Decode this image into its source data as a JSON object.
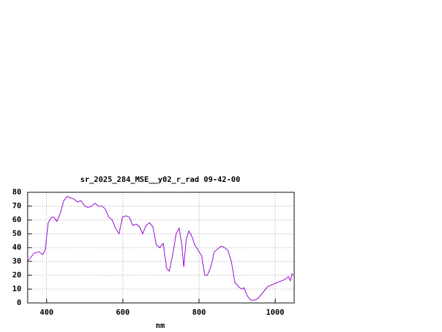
{
  "chart_data": {
    "type": "line",
    "title": "sr_2025_284_MSE__y02_r_rad 09-42-00",
    "x_label": "nm",
    "x": [
      350,
      367,
      380,
      389,
      396,
      404,
      413,
      418,
      427,
      436,
      445,
      454,
      463,
      472,
      481,
      490,
      500,
      509,
      518,
      527,
      536,
      545,
      554,
      563,
      572,
      581,
      590,
      599,
      608,
      617,
      626,
      635,
      644,
      652,
      661,
      670,
      679,
      688,
      697,
      706,
      715,
      722,
      731,
      740,
      748,
      755,
      760,
      766,
      773,
      780,
      789,
      798,
      807,
      815,
      822,
      831,
      840,
      849,
      858,
      867,
      876,
      885,
      894,
      903,
      912,
      918,
      927,
      936,
      945,
      954,
      963,
      972,
      981,
      990,
      999,
      1008,
      1017,
      1026,
      1035,
      1040,
      1044,
      1048
    ],
    "series": [
      {
        "color": "#9400d3",
        "values": [
          30,
          36,
          37,
          35,
          38,
          58,
          62,
          62,
          59,
          65,
          74,
          77,
          76,
          75,
          73,
          74,
          70,
          69,
          70,
          72,
          70,
          70,
          68,
          62,
          60,
          54,
          50,
          62,
          63,
          62,
          56,
          57,
          55,
          50,
          56,
          58,
          55,
          42,
          40,
          43,
          25,
          23,
          35,
          50,
          54,
          42,
          26,
          45,
          52,
          49,
          42,
          38,
          34,
          20,
          20,
          26,
          37,
          39,
          41,
          40,
          38,
          30,
          15,
          12,
          10,
          11,
          5,
          2,
          2,
          3,
          6,
          9,
          12,
          13,
          14,
          15,
          16,
          17,
          19,
          16,
          21,
          20
        ]
      }
    ],
    "xlim": [
      350,
      1050
    ],
    "ylim": [
      0,
      80
    ],
    "xticks": [
      400,
      600,
      800,
      1000
    ],
    "yticks": [
      0,
      10,
      20,
      30,
      40,
      50,
      60,
      70,
      80
    ],
    "grid": true
  }
}
